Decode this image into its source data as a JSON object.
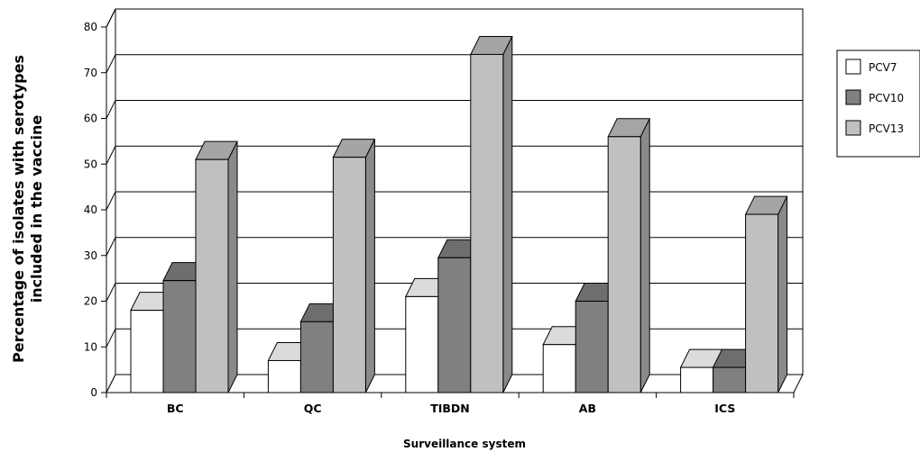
{
  "chart_data": {
    "type": "bar",
    "style": "3d-clustered-column",
    "categories": [
      "BC",
      "QC",
      "TIBDN",
      "AB",
      "ICS"
    ],
    "series": [
      {
        "name": "PCV7",
        "values": [
          18,
          7,
          21,
          10.5,
          5.5
        ],
        "color": "#ffffff"
      },
      {
        "name": "PCV10",
        "values": [
          24.5,
          15.5,
          29.5,
          20,
          5.5
        ],
        "color": "#808080"
      },
      {
        "name": "PCV13",
        "values": [
          51,
          51.5,
          74,
          56,
          39
        ],
        "color": "#c0c0c0"
      }
    ],
    "yticks": [
      "0",
      "10",
      "20",
      "30",
      "40",
      "50",
      "60",
      "70",
      "80"
    ],
    "ylim": [
      0,
      80
    ],
    "xlabel": "Surveillance system",
    "ylabel_lines": [
      "Percentage of isolates with serotypes",
      "included in the vaccine"
    ],
    "grid": true,
    "legend_position": "right"
  }
}
